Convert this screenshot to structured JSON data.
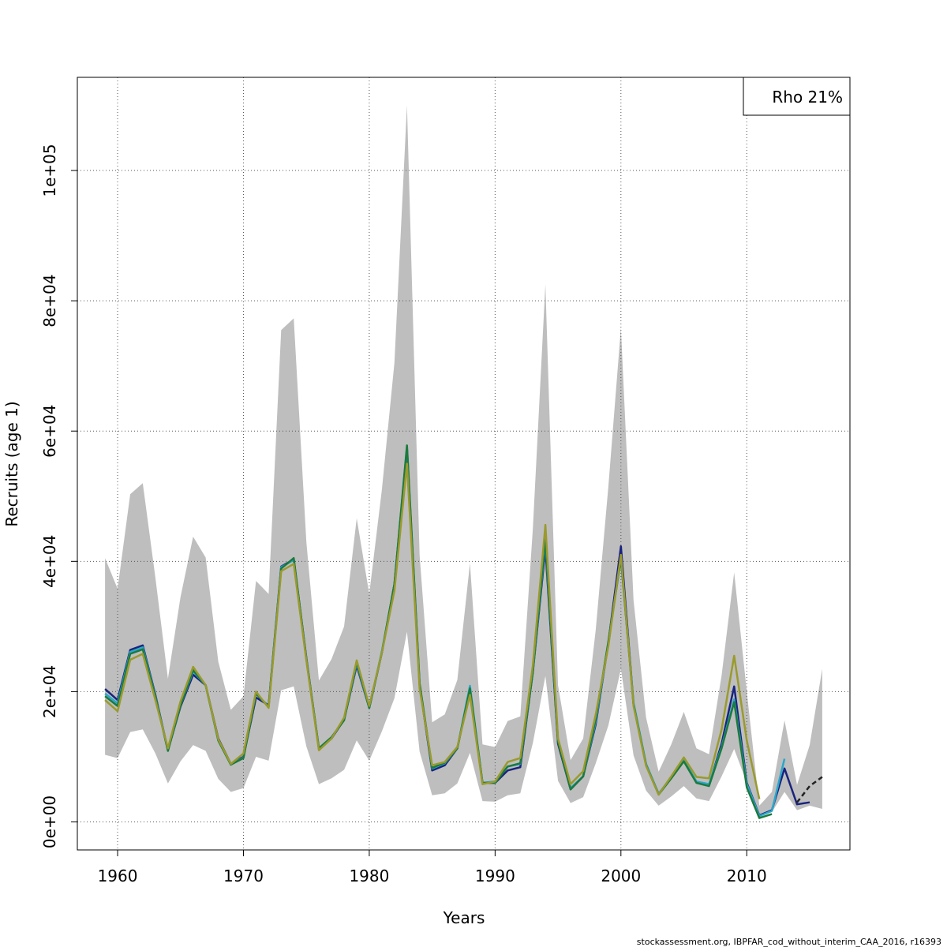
{
  "chart_data": {
    "type": "line",
    "xlabel": "Years",
    "ylabel": "Recruits (age 1)",
    "xlim": [
      1956.8,
      2018.2
    ],
    "ylim": [
      -4300,
      114300
    ],
    "x_ticks": [
      1960,
      1970,
      1980,
      1990,
      2000,
      2010
    ],
    "x_tick_labels": [
      "1960",
      "1970",
      "1980",
      "1990",
      "2000",
      "2010"
    ],
    "y_ticks": [
      0,
      20000,
      40000,
      60000,
      80000,
      100000
    ],
    "y_tick_labels": [
      "0e+00",
      "2e+04",
      "4e+04",
      "6e+04",
      "8e+04",
      "1e+05"
    ],
    "grid": true,
    "legend_text": "Rho 21%",
    "legend_placement": "top-right",
    "footer": "stockassessment.org, IBPFAR_cod_without_interim_CAA_2016, r16393",
    "confidence_band": {
      "color": "#bebebe",
      "x": [
        1959,
        1960,
        1961,
        1962,
        1963,
        1964,
        1965,
        1966,
        1967,
        1968,
        1969,
        1970,
        1971,
        1972,
        1973,
        1974,
        1975,
        1976,
        1977,
        1978,
        1979,
        1980,
        1981,
        1982,
        1983,
        1984,
        1985,
        1986,
        1987,
        1988,
        1989,
        1990,
        1991,
        1992,
        1993,
        1994,
        1995,
        1996,
        1997,
        1998,
        1999,
        2000,
        2001,
        2002,
        2003,
        2004,
        2005,
        2006,
        2007,
        2008,
        2009,
        2010,
        2011,
        2012,
        2013,
        2014,
        2015,
        2016
      ],
      "upper": [
        40500,
        35800,
        50300,
        52000,
        37500,
        22000,
        34500,
        43800,
        40600,
        24600,
        17200,
        19300,
        37000,
        35000,
        75500,
        77300,
        43000,
        21700,
        25000,
        30000,
        46600,
        35000,
        51000,
        70500,
        110000,
        41000,
        15300,
        16500,
        21800,
        39700,
        11900,
        11500,
        15500,
        16200,
        45000,
        82500,
        21000,
        9500,
        12800,
        29500,
        51500,
        75800,
        34000,
        16000,
        7700,
        11900,
        16900,
        11300,
        10400,
        22500,
        38300,
        20000,
        2500,
        4600,
        15600,
        5700,
        11800,
        23500
      ],
      "lower": [
        10300,
        9800,
        13800,
        14200,
        10500,
        5900,
        9300,
        11800,
        10900,
        6600,
        4600,
        5200,
        10000,
        9400,
        20200,
        20800,
        11600,
        5800,
        6700,
        8000,
        12500,
        9400,
        13900,
        19000,
        29200,
        10800,
        4100,
        4400,
        5900,
        10600,
        3200,
        3100,
        4100,
        4400,
        12100,
        22400,
        6300,
        2900,
        3800,
        9000,
        14800,
        23500,
        10200,
        4800,
        2500,
        3900,
        5500,
        3600,
        3200,
        7000,
        11200,
        6000,
        800,
        1500,
        4600,
        1800,
        2500,
        2000
      ]
    },
    "series": [
      {
        "color": "#1a237e",
        "x": [
          1959,
          1960,
          1961,
          1962,
          1963,
          1964,
          1965,
          1966,
          1967,
          1968,
          1969,
          1970,
          1971,
          1972,
          1973,
          1974,
          1975,
          1976,
          1977,
          1978,
          1979,
          1980,
          1981,
          1982,
          1983,
          1984,
          1985,
          1986,
          1987,
          1988,
          1989,
          1990,
          1991,
          1992,
          1993,
          1994,
          1995,
          1996,
          1997,
          1998,
          1999,
          2000,
          2001,
          2002,
          2003,
          2004,
          2005,
          2006,
          2007,
          2008,
          2009,
          2010,
          2011,
          2012,
          2013,
          2014,
          2015
        ],
        "y": [
          20400,
          18700,
          26400,
          27100,
          19500,
          11000,
          17700,
          22600,
          21000,
          12800,
          8900,
          10000,
          19100,
          17900,
          39200,
          40300,
          25200,
          11200,
          12800,
          15700,
          24000,
          17500,
          26000,
          36500,
          57200,
          21000,
          7900,
          8700,
          11300,
          20300,
          6000,
          6000,
          7900,
          8400,
          23000,
          42000,
          12000,
          5000,
          7000,
          15000,
          27500,
          42300,
          18000,
          8800,
          4300,
          6800,
          9400,
          6100,
          5600,
          12000,
          20800,
          6000,
          1000,
          1800,
          8200,
          2700,
          3000
        ]
      },
      {
        "color": "#2aa7c9",
        "x": [
          1959,
          1960,
          1961,
          1962,
          1963,
          1964,
          1965,
          1966,
          1967,
          1968,
          1969,
          1970,
          1971,
          1972,
          1973,
          1974,
          1975,
          1976,
          1977,
          1978,
          1979,
          1980,
          1981,
          1982,
          1983,
          1984,
          1985,
          1986,
          1987,
          1988,
          1989,
          1990,
          1991,
          1992,
          1993,
          1994,
          1995,
          1996,
          1997,
          1998,
          1999,
          2000,
          2001,
          2002,
          2003,
          2004,
          2005,
          2006,
          2007,
          2008,
          2009,
          2010,
          2011,
          2012,
          2013
        ],
        "y": [
          19700,
          18200,
          26100,
          26800,
          19300,
          11000,
          17900,
          23100,
          21000,
          12500,
          8800,
          9900,
          19700,
          17700,
          39100,
          40200,
          25000,
          11300,
          13000,
          15700,
          24300,
          17500,
          26200,
          36200,
          57600,
          21200,
          8200,
          9000,
          11300,
          20900,
          6000,
          6200,
          8500,
          8900,
          23000,
          43000,
          12500,
          5200,
          7000,
          15400,
          27500,
          40500,
          18300,
          8900,
          4300,
          6900,
          9500,
          6200,
          5800,
          11500,
          18800,
          5800,
          900,
          1700,
          9700
        ]
      },
      {
        "color": "#1b7a3e",
        "x": [
          1959,
          1960,
          1961,
          1962,
          1963,
          1964,
          1965,
          1966,
          1967,
          1968,
          1969,
          1970,
          1971,
          1972,
          1973,
          1974,
          1975,
          1976,
          1977,
          1978,
          1979,
          1980,
          1981,
          1982,
          1983,
          1984,
          1985,
          1986,
          1987,
          1988,
          1989,
          1990,
          1991,
          1992,
          1993,
          1994,
          1995,
          1996,
          1997,
          1998,
          1999,
          2000,
          2001,
          2002,
          2003,
          2004,
          2005,
          2006,
          2007,
          2008,
          2009,
          2010,
          2011,
          2012
        ],
        "y": [
          19300,
          17800,
          25800,
          26500,
          19200,
          10900,
          17900,
          23300,
          21000,
          12500,
          8800,
          9800,
          19700,
          17700,
          38900,
          40500,
          25000,
          11300,
          13000,
          15600,
          24500,
          17500,
          26000,
          36500,
          57800,
          21300,
          8300,
          9100,
          11300,
          20500,
          6000,
          6000,
          8500,
          9000,
          23000,
          43500,
          12300,
          5000,
          7000,
          15800,
          27700,
          40500,
          18000,
          8700,
          4200,
          6700,
          9300,
          6000,
          5500,
          11300,
          18400,
          5300,
          600,
          1200
        ]
      },
      {
        "color": "#9a9a2e",
        "x": [
          1959,
          1960,
          1961,
          1962,
          1963,
          1964,
          1965,
          1966,
          1967,
          1968,
          1969,
          1970,
          1971,
          1972,
          1973,
          1974,
          1975,
          1976,
          1977,
          1978,
          1979,
          1980,
          1981,
          1982,
          1983,
          1984,
          1985,
          1986,
          1987,
          1988,
          1989,
          1990,
          1991,
          1992,
          1993,
          1994,
          1995,
          1996,
          1997,
          1998,
          1999,
          2000,
          2001,
          2002,
          2003,
          2004,
          2005,
          2006,
          2007,
          2008,
          2009,
          2010,
          2011
        ],
        "y": [
          18700,
          17000,
          24900,
          25800,
          18700,
          11300,
          18500,
          23800,
          21000,
          12700,
          8900,
          10500,
          20000,
          17500,
          38500,
          39600,
          24800,
          11000,
          12800,
          16000,
          24800,
          17800,
          26000,
          35500,
          55000,
          20500,
          8700,
          9200,
          11500,
          19500,
          5800,
          6200,
          9200,
          9800,
          24000,
          45600,
          12800,
          5800,
          7800,
          16500,
          27000,
          41000,
          17800,
          8600,
          4200,
          7000,
          9900,
          6900,
          6700,
          14200,
          25500,
          12500,
          3500
        ]
      },
      {
        "color": "#222222",
        "dashed": true,
        "x": [
          2014,
          2015,
          2016
        ],
        "y": [
          3000,
          5500,
          6900
        ]
      }
    ]
  }
}
